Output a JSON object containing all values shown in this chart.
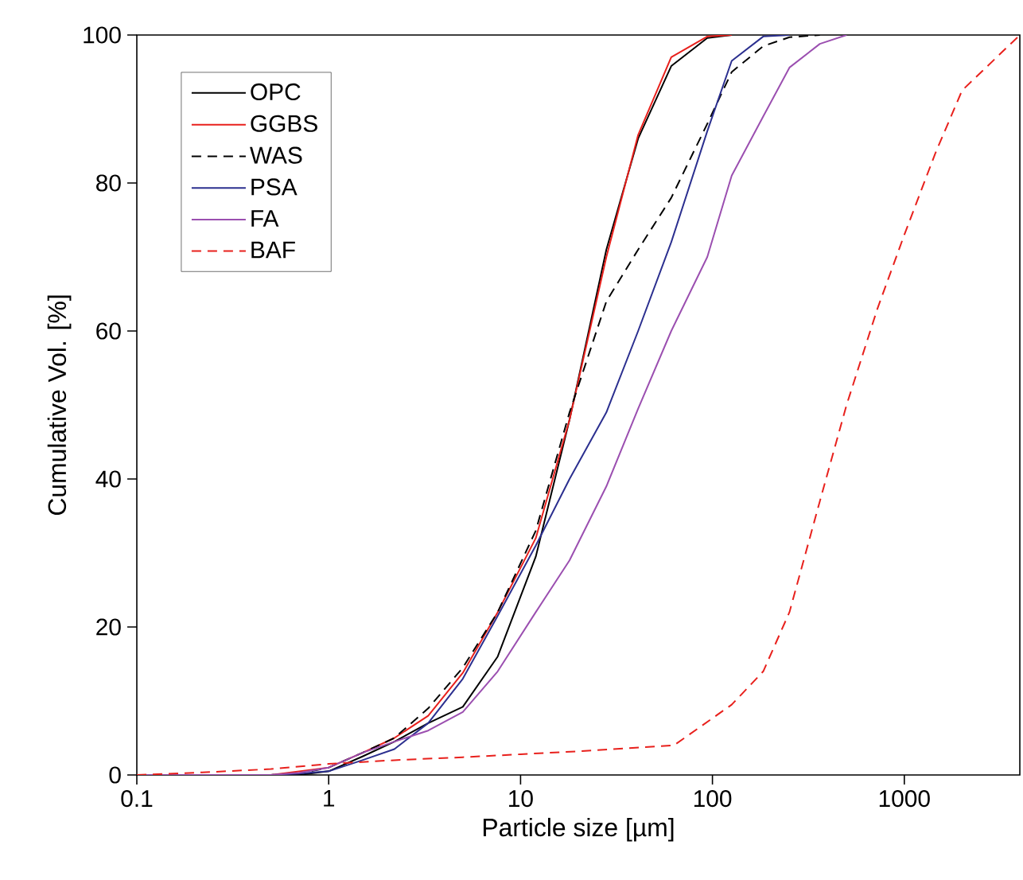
{
  "chart_data": {
    "type": "line",
    "xlabel": "Particle size [µm]",
    "ylabel": "Cumulative Vol. [%]",
    "log": "x",
    "xlim": [
      0.1,
      4000
    ],
    "ylim": [
      0,
      100
    ],
    "xticks": [
      {
        "value": 0.1,
        "label": "0.1"
      },
      {
        "value": 1,
        "label": "1"
      },
      {
        "value": 10,
        "label": "10"
      },
      {
        "value": 100,
        "label": "100"
      },
      {
        "value": 1000,
        "label": "1000"
      }
    ],
    "yticks": [
      0,
      20,
      40,
      60,
      80,
      100
    ],
    "legend": "top left",
    "marker": "none",
    "grid": false,
    "series": [
      {
        "name": "OPC",
        "color": "#000000",
        "line_style": "solid",
        "x": [
          0.1,
          0.5,
          0.7,
          1,
          1.5,
          2.2,
          3.3,
          5,
          7.6,
          12,
          18,
          28,
          41,
          61,
          94,
          126
        ],
        "values": [
          0,
          0,
          0,
          0.5,
          2.5,
          4.5,
          7,
          9.2,
          16,
          29.5,
          48,
          71,
          86,
          95.8,
          99.6,
          100
        ]
      },
      {
        "name": "GGBS",
        "color": "#e8201c",
        "line_style": "solid",
        "x": [
          0.1,
          0.5,
          1,
          1.5,
          2.2,
          3.3,
          5,
          7.6,
          12,
          18,
          28,
          41,
          61,
          94,
          126
        ],
        "values": [
          0,
          0,
          1,
          3,
          5,
          8,
          13.8,
          22,
          32,
          48,
          70,
          86.5,
          97,
          99.8,
          100
        ]
      },
      {
        "name": "WAS",
        "color": "#000000",
        "line_style": "dashed",
        "x": [
          0.1,
          0.5,
          0.7,
          1,
          1.5,
          2.2,
          3.3,
          5,
          7.6,
          12,
          18,
          28,
          41,
          61,
          94,
          126,
          184,
          252,
          363
        ],
        "values": [
          0,
          0,
          0.2,
          1,
          3,
          5,
          9,
          14.5,
          22,
          33,
          49,
          64,
          71,
          78,
          88,
          95,
          98.5,
          99.7,
          100
        ]
      },
      {
        "name": "PSA",
        "color": "#2b2f8f",
        "line_style": "solid",
        "x": [
          0.1,
          0.5,
          0.7,
          1,
          1.5,
          2.2,
          3.3,
          5,
          7.6,
          12,
          18,
          28,
          41,
          61,
          94,
          126,
          184,
          252
        ],
        "values": [
          0,
          0,
          0.2,
          0.5,
          2,
          3.5,
          7,
          13,
          21.5,
          31,
          40,
          49,
          60,
          72,
          87,
          96.5,
          99.8,
          100
        ]
      },
      {
        "name": "FA",
        "color": "#9b4fb0",
        "line_style": "solid",
        "x": [
          0.1,
          0.5,
          0.7,
          1,
          1.5,
          2.2,
          3.3,
          5,
          7.6,
          12,
          18,
          28,
          41,
          61,
          94,
          126,
          184,
          252,
          363,
          500
        ],
        "values": [
          0,
          0,
          0.3,
          1,
          3,
          4.5,
          6,
          8.5,
          14,
          22,
          29,
          39,
          49.5,
          60,
          70,
          81,
          89,
          95.6,
          98.8,
          100
        ]
      },
      {
        "name": "BAF",
        "color": "#e8201c",
        "line_style": "dashed",
        "x": [
          0.1,
          0.2,
          0.5,
          1,
          2.2,
          5,
          10,
          20,
          63,
          126,
          184,
          252,
          363,
          500,
          724,
          1000,
          1450,
          2000,
          4000
        ],
        "values": [
          0,
          0.3,
          0.8,
          1.5,
          2,
          2.4,
          2.8,
          3.2,
          4,
          9.5,
          14,
          22,
          37,
          50,
          63,
          73,
          84,
          92.5,
          100
        ]
      }
    ]
  }
}
